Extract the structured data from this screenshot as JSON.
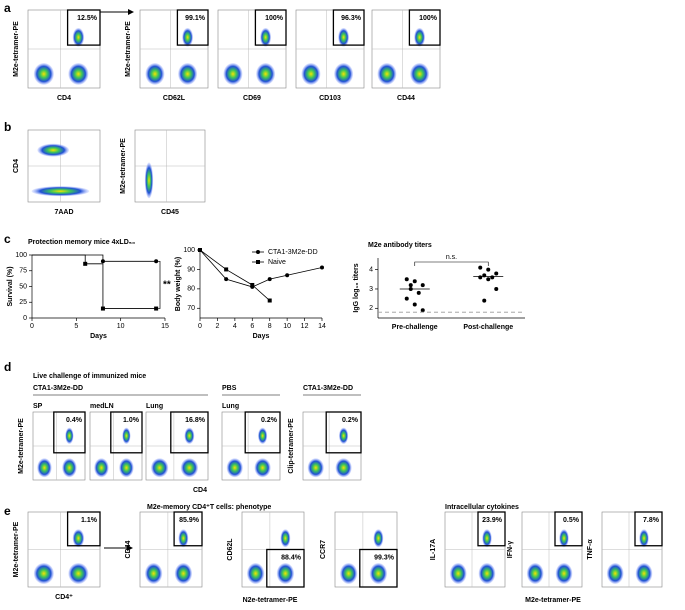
{
  "panel_labels": [
    "a",
    "b",
    "c",
    "d",
    "e"
  ],
  "flow_plots": [
    {
      "y_label": "M2e-tetramer-PE",
      "x_label": "CD4",
      "gate_label": "12.5%"
    },
    {
      "y_label": "M2e-tetramer-PE",
      "x_label": "CD62L",
      "gate_label": "99.1%"
    },
    {
      "x_label": "CD69",
      "gate_label": "100%"
    },
    {
      "x_label": "CD103",
      "gate_label": "96.3%"
    },
    {
      "x_label": "CD44",
      "gate_label": "100%"
    },
    {
      "y_label": "CD4",
      "x_label": "7AAD"
    },
    {
      "y_label": "M2e-tetramer-PE",
      "x_label": "CD45"
    },
    {
      "title": "SP",
      "y_label": "M2e-tetramer-PE",
      "gate_label": "0.4%"
    },
    {
      "title": "medLN",
      "gate_label": "1.0%"
    },
    {
      "title": "Lung",
      "gate_label": "16.8%"
    },
    {
      "title": "Lung",
      "gate_label": "0.2%"
    },
    {
      "y_label": "Clip-tetramer-PE",
      "gate_label": "0.2%"
    },
    {
      "y_label": "M2e-tetramer-PE",
      "x_label": "CD4⁺",
      "gate_label": "1.1%"
    },
    {
      "y_label": "CD44",
      "gate_label": "85.9%"
    },
    {
      "y_label": "CD62L",
      "gate_label": "88.4%"
    },
    {
      "y_label": "CCR7",
      "gate_label": "99.3%"
    },
    {
      "y_label": "IL-17A",
      "gate_label": "23.9%"
    },
    {
      "y_label": "IFN-γ",
      "gate_label": "0.5%"
    },
    {
      "y_label": "TNF-α",
      "gate_label": "7.8%"
    }
  ],
  "panel_d": {
    "heading": "Live challenge of immunized mice",
    "groups": [
      "CTA1-3M2e-DD",
      "PBS",
      "CTA1-3M2e-DD"
    ],
    "x_label": "CD4"
  },
  "panel_e": {
    "phenotype_title": "M2e-memory CD4⁺T cells: phenotype",
    "phenotype_x_label": "N2e-tetramer-PE",
    "cytokine_title": "Intracellular cytokines",
    "cytokine_x_label": "M2e-tetramer-PE"
  },
  "chart_data": [
    {
      "type": "line",
      "step": true,
      "title": "Protection memory mice 4xLD₅₀",
      "x_label": "Days",
      "y_label": "Survival (%)",
      "xlim": [
        0,
        15
      ],
      "xticks": [
        0,
        5,
        10,
        15
      ],
      "ylim": [
        0,
        100
      ],
      "yticks": [
        0,
        25,
        50,
        75,
        100
      ],
      "annotation": "**",
      "series": [
        {
          "marker": "circle",
          "color": "#000000",
          "x": [
            0,
            8,
            14
          ],
          "values": [
            100,
            90,
            90
          ]
        },
        {
          "marker": "square",
          "color": "#000000",
          "x": [
            0,
            6,
            8,
            14
          ],
          "values": [
            100,
            86,
            15,
            15
          ]
        }
      ]
    },
    {
      "type": "line",
      "step": false,
      "x_label": "Days",
      "y_label": "Body weight (%)",
      "xlim": [
        0,
        14
      ],
      "xticks": [
        0,
        2,
        4,
        6,
        8,
        10,
        12,
        14
      ],
      "ylim": [
        65,
        100
      ],
      "yticks": [
        70,
        80,
        90,
        100
      ],
      "legend": "upper right",
      "series": [
        {
          "name": "CTA1-3M2e-DD",
          "marker": "circle",
          "color": "#000000",
          "x": [
            0,
            3,
            6,
            8,
            10,
            14
          ],
          "values": [
            100,
            85,
            81,
            85,
            87,
            91
          ]
        },
        {
          "name": "Naive",
          "marker": "square",
          "color": "#000000",
          "x": [
            0,
            3,
            6,
            8
          ],
          "values": [
            100,
            90,
            82,
            74
          ]
        }
      ]
    },
    {
      "type": "strip",
      "title": "M2e antibody titers",
      "y_label": "IgG log₁₀ titers",
      "annotation": "n.s.",
      "categories": [
        "Pre-challenge",
        "Post-challenge"
      ],
      "ylim": [
        1.5,
        4.6
      ],
      "yticks": [
        2,
        3,
        4
      ],
      "series": [
        {
          "color": "#000000",
          "values": [
            3.5,
            3.4,
            3.2,
            3.0,
            2.8,
            2.5,
            2.2,
            1.9,
            3.2
          ]
        },
        {
          "color": "#000000",
          "values": [
            4.1,
            4.0,
            3.8,
            3.7,
            3.6,
            3.6,
            3.5,
            3.0,
            2.4
          ]
        }
      ],
      "means": [
        3.0,
        3.65
      ],
      "baseline": 1.8
    }
  ]
}
